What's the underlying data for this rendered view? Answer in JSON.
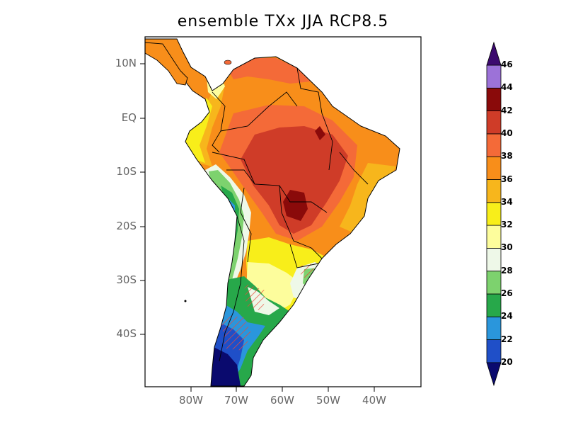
{
  "title": "ensemble TXx JJA RCP8.5",
  "axes": {
    "lat_ticks": [
      "10N",
      "EQ",
      "10S",
      "20S",
      "30S",
      "40S"
    ],
    "lon_ticks": [
      "80W",
      "70W",
      "60W",
      "50W",
      "40W"
    ]
  },
  "colorbar": {
    "levels": [
      "20",
      "22",
      "24",
      "26",
      "28",
      "30",
      "32",
      "34",
      "36",
      "38",
      "40",
      "42",
      "44",
      "46"
    ],
    "colors": [
      "#0a0a6e",
      "#1f4fc8",
      "#2a96dc",
      "#27a84a",
      "#7dd26e",
      "#eef8e8",
      "#fdfd9c",
      "#f8ee1a",
      "#f7b61c",
      "#f88e1a",
      "#f46a38",
      "#cf3c28",
      "#8a0a0a",
      "#9c72d8",
      "#3c0a6e"
    ]
  },
  "legend_icons": [
    "map-hatch-significance"
  ]
}
